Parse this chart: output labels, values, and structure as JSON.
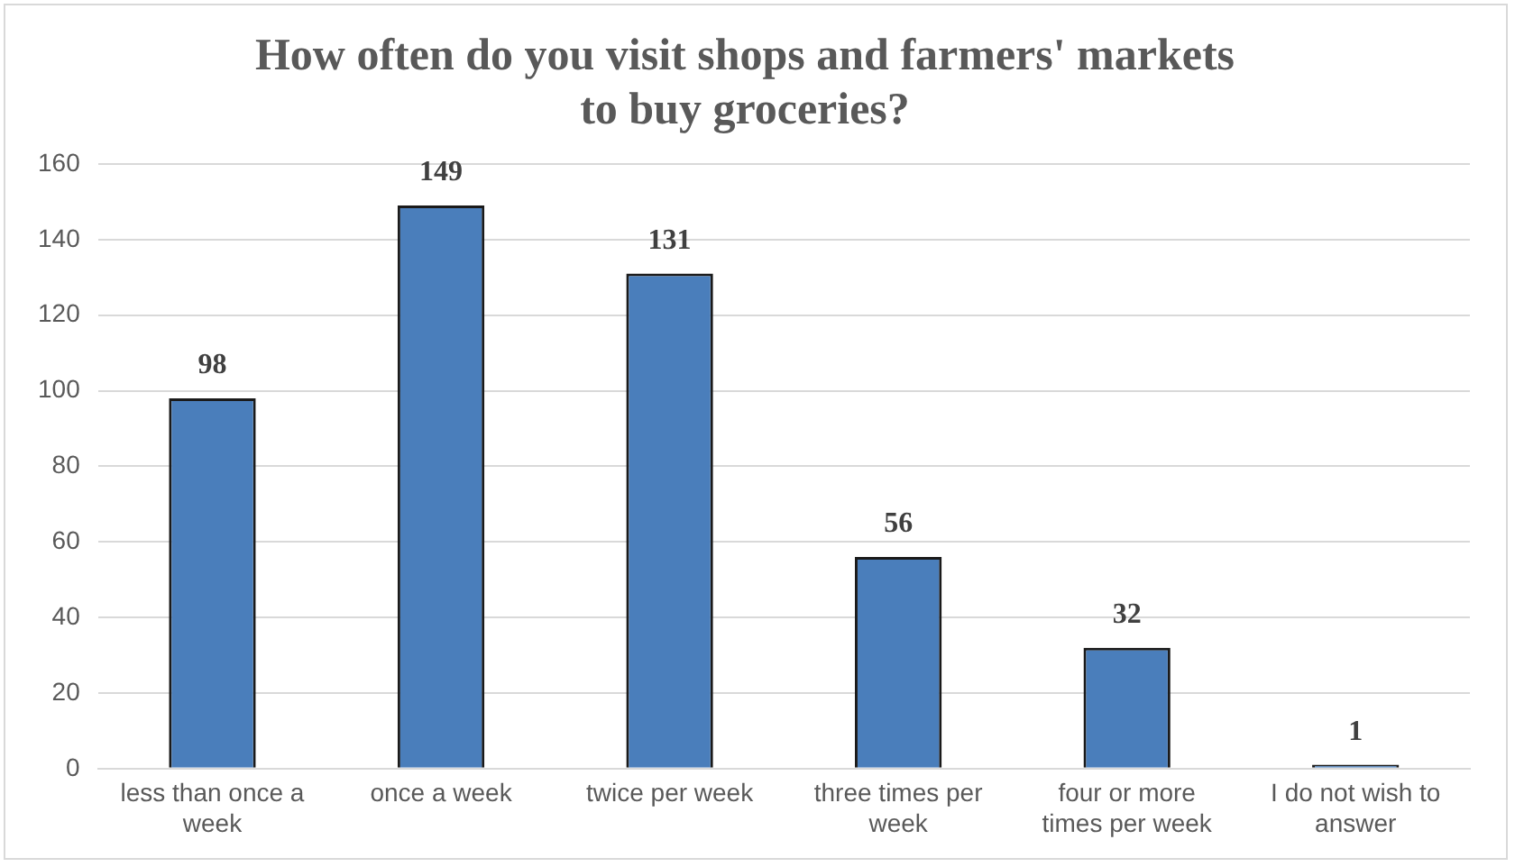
{
  "chart_data": {
    "type": "bar",
    "title": "How often do you visit shops and farmers' markets to buy groceries?",
    "categories": [
      "less than once a week",
      "once a week",
      "twice per week",
      "three times per week",
      "four or more times per week",
      "I do not wish to answer"
    ],
    "values": [
      98,
      149,
      131,
      56,
      32,
      1
    ],
    "color": "#4a7ebb",
    "ylim": [
      0,
      160
    ],
    "yticks": [
      0,
      20,
      40,
      60,
      80,
      100,
      120,
      140,
      160
    ],
    "grid": "y",
    "legend": false,
    "data_labels": true
  }
}
